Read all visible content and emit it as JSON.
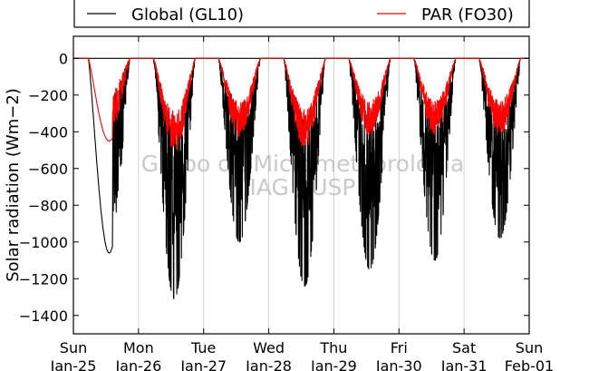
{
  "chart_data": {
    "type": "line",
    "ylabel": "Solar radiation (Wm−2)",
    "ylim": [
      -1500,
      120
    ],
    "yticks": [
      0,
      -200,
      -400,
      -600,
      -800,
      -1000,
      -1200,
      -1400
    ],
    "ytick_labels": [
      "0",
      "−200",
      "−400",
      "−600",
      "−800",
      "−1000",
      "−1200",
      "−1400"
    ],
    "xlim": [
      0,
      7
    ],
    "xticks": [
      {
        "day": "Sun",
        "date": "Jan-25"
      },
      {
        "day": "Mon",
        "date": "Jan-26"
      },
      {
        "day": "Tue",
        "date": "Jan-27"
      },
      {
        "day": "Wed",
        "date": "Jan-28"
      },
      {
        "day": "Thu",
        "date": "Jan-29"
      },
      {
        "day": "Fri",
        "date": "Jan-30"
      },
      {
        "day": "Sat",
        "date": "Jan-31"
      },
      {
        "day": "Sun",
        "date": "Feb-01"
      }
    ],
    "grid": "vertical",
    "legend_position": "top, outside plot",
    "series": [
      {
        "name": "Global (GL10)",
        "color": "#000000",
        "daily_peak_abs": [
          1060,
          1310,
          1000,
          1240,
          1150,
          1100,
          980
        ],
        "x": [
          0.2,
          0.3,
          0.4,
          0.5,
          0.6,
          0.65,
          0.7,
          0.8,
          0.9,
          1.2,
          1.3,
          1.4,
          1.5,
          1.6,
          1.7,
          1.8,
          2.2,
          2.3,
          2.4,
          2.5,
          2.6,
          2.7,
          2.8,
          3.2,
          3.3,
          3.4,
          3.5,
          3.6,
          3.7,
          3.8,
          4.2,
          4.3,
          4.4,
          4.5,
          4.6,
          4.7,
          4.8,
          5.2,
          5.3,
          5.4,
          5.5,
          5.6,
          5.7,
          5.8,
          6.2,
          6.3,
          6.4,
          6.5,
          6.6,
          6.7,
          6.8
        ],
        "y": [
          0,
          -300,
          -700,
          -1000,
          -1050,
          -900,
          -400,
          -100,
          0,
          0,
          -300,
          -900,
          -1300,
          -1000,
          -300,
          0,
          0,
          -200,
          -600,
          -900,
          -900,
          -300,
          0,
          0,
          -300,
          -900,
          -1200,
          -1100,
          -400,
          0,
          0,
          -300,
          -900,
          -1150,
          -1000,
          -300,
          0,
          0,
          -200,
          -700,
          -1000,
          -900,
          -200,
          0,
          0,
          -200,
          -600,
          -900,
          -700,
          -150,
          0
        ]
      },
      {
        "name": "PAR (FO30)",
        "color": "#ff0000",
        "daily_peak_abs": [
          450,
          520,
          430,
          500,
          420,
          420,
          420
        ],
        "x": [
          0.2,
          0.3,
          0.4,
          0.5,
          0.6,
          0.7,
          0.8,
          0.9,
          1.2,
          1.3,
          1.4,
          1.5,
          1.6,
          1.7,
          1.8,
          2.2,
          2.3,
          2.4,
          2.5,
          2.6,
          2.7,
          2.8,
          3.2,
          3.3,
          3.4,
          3.5,
          3.6,
          3.7,
          3.8,
          4.2,
          4.3,
          4.4,
          4.5,
          4.6,
          4.7,
          4.8,
          5.2,
          5.3,
          5.4,
          5.5,
          5.6,
          5.7,
          5.8,
          6.2,
          6.3,
          6.4,
          6.5,
          6.6,
          6.7,
          6.8
        ],
        "y": [
          0,
          -150,
          -350,
          -440,
          -300,
          -120,
          -50,
          0,
          0,
          -150,
          -350,
          -450,
          -300,
          -100,
          0,
          0,
          -100,
          -300,
          -350,
          -300,
          -100,
          0,
          0,
          -150,
          -350,
          -450,
          -350,
          -100,
          0,
          0,
          -150,
          -350,
          -420,
          -350,
          -100,
          0,
          0,
          -100,
          -300,
          -400,
          -300,
          -80,
          0,
          0,
          -100,
          -280,
          -380,
          -300,
          -60,
          0
        ]
      }
    ]
  },
  "legend": {
    "items": [
      {
        "label": "Global (GL10)",
        "color": "#000000"
      },
      {
        "label": "PAR (FO30)",
        "color": "#ff0000"
      }
    ]
  },
  "watermark": {
    "line1": "Grupo de Micrometeorologia",
    "line2": "IAG / USP"
  }
}
